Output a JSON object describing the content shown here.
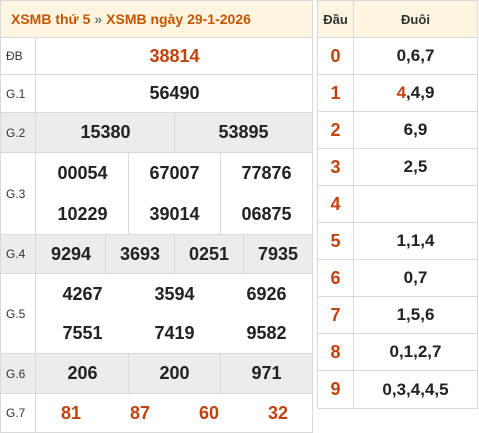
{
  "header": {
    "link1": "XSMB thứ 5",
    "separator": "»",
    "link2": "XSMB ngày 29-1-2026"
  },
  "prizes": {
    "db": {
      "label": "ĐB",
      "numbers": [
        "38814"
      ]
    },
    "g1": {
      "label": "G.1",
      "numbers": [
        "56490"
      ]
    },
    "g2": {
      "label": "G.2",
      "numbers": [
        "15380",
        "53895"
      ]
    },
    "g3": {
      "label": "G.3",
      "numbers": [
        "00054",
        "67007",
        "77876",
        "10229",
        "39014",
        "06875"
      ]
    },
    "g4": {
      "label": "G.4",
      "numbers": [
        "9294",
        "3693",
        "0251",
        "7935"
      ]
    },
    "g5": {
      "label": "G.5",
      "numbers": [
        "4267",
        "3594",
        "6926",
        "7551",
        "7419",
        "9582"
      ]
    },
    "g6": {
      "label": "G.6",
      "numbers": [
        "206",
        "200",
        "971"
      ]
    },
    "g7": {
      "label": "G.7",
      "numbers": [
        "81",
        "87",
        "60",
        "32"
      ]
    }
  },
  "loto": {
    "head_label": "Đầu",
    "tail_label": "Đuôi",
    "rows": [
      {
        "head": "0",
        "tail": "0,6,7"
      },
      {
        "head": "1",
        "tail_highlight": "4",
        "tail_rest": ",4,9"
      },
      {
        "head": "2",
        "tail": "6,9"
      },
      {
        "head": "3",
        "tail": "2,5"
      },
      {
        "head": "4",
        "tail": ""
      },
      {
        "head": "5",
        "tail": "1,1,4"
      },
      {
        "head": "6",
        "tail": "0,7"
      },
      {
        "head": "7",
        "tail": "1,5,6"
      },
      {
        "head": "8",
        "tail": "0,1,2,7"
      },
      {
        "head": "9",
        "tail": "0,3,4,4,5"
      }
    ]
  },
  "colors": {
    "accent": "#c2410c",
    "header_bg": "#fdf5df",
    "row_gray": "#ececec",
    "border": "#d9d9d9"
  }
}
